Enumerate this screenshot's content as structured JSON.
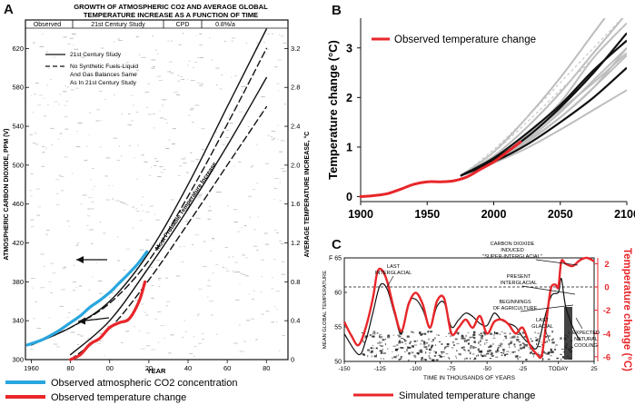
{
  "panels": {
    "a": {
      "label": "A",
      "title_line1": "GROWTH OF ATMOSPHERIC CO2 AND AVERAGE GLOBAL",
      "title_line2": "TEMPERATURE INCREASE AS A FUNCTION OF TIME",
      "periods": [
        "Observed",
        "21st Century Study",
        "CPD",
        "0.8%/a"
      ],
      "legend_lines": [
        "21st Century Study",
        "No Synthetic Fuels-Liquid",
        "And Gas Balances Same",
        "As In 21st Century Study"
      ],
      "annotation": "Most Probable Temperature Increase",
      "bottom_legend": [
        "Observed atmospheric CO2 concentration",
        "Observed temperature change"
      ]
    },
    "b": {
      "label": "B",
      "legend": "Observed temperature change"
    },
    "c": {
      "label": "C",
      "bottom_legend": "Simulated temperature change",
      "annotations": {
        "co2_1": "CARBON DIOXIDE",
        "co2_2": "INDUCED",
        "co2_3": "\"SUPER-INTERGLACIAL\"",
        "last_interglacial_1": "LAST",
        "last_interglacial_2": "INTERGLACIAL",
        "present_1": "PRESENT",
        "present_2": "INTERGLACIAL",
        "agri_1": "BEGINNINGS",
        "agri_2": "OF AGRICULTURE",
        "glacial_1": "LAST",
        "glacial_2": "GLACIAL",
        "cooling_1": "EXPECTED",
        "cooling_2": "NATURAL",
        "cooling_3": "COOLING"
      }
    }
  },
  "colors": {
    "observed_co2": "#2aa6de",
    "observed_temp": "#e8262a",
    "projection_gray": "#bdbdbd",
    "black": "#111111"
  },
  "chart_data": [
    {
      "type": "line",
      "title": "GROWTH OF ATMOSPHERIC CO2 AND AVERAGE GLOBAL TEMPERATURE INCREASE AS A FUNCTION OF TIME",
      "xlabel": "YEAR",
      "ylabel": "ATMOSPHERIC CARBON DIOXIDE, PPM (V)",
      "y2label": "AVERAGE TEMPERATURE INCREASE, °C",
      "x_ticks": [
        "1960",
        "80",
        "00",
        "20",
        "40",
        "60",
        "80"
      ],
      "y_ticks": [
        300,
        340,
        380,
        420,
        460,
        500,
        540,
        580,
        620
      ],
      "y2_ticks": [
        "0",
        "0.4",
        "0.8",
        "1.2",
        "1.6",
        "2.0",
        "2.4",
        "2.8",
        "3.2"
      ],
      "xlim": [
        1957,
        2091
      ],
      "ylim": [
        300,
        640
      ],
      "y2lim": [
        0,
        3.4
      ],
      "series": [
        {
          "name": "Observed atmospheric CO2 concentration",
          "axis": "left",
          "x": [
            1958,
            1965,
            1970,
            1975,
            1980,
            1985,
            1990,
            1995,
            2000,
            2005,
            2010,
            2015,
            2019
          ],
          "y": [
            315,
            320,
            325,
            331,
            338,
            345,
            354,
            361,
            369,
            379,
            389,
            400,
            411
          ]
        },
        {
          "name": "Observed temperature change",
          "axis": "right",
          "x": [
            1980,
            1985,
            1990,
            1995,
            2000,
            2005,
            2010,
            2015,
            2018
          ],
          "y": [
            0.0,
            0.05,
            0.16,
            0.22,
            0.33,
            0.38,
            0.42,
            0.6,
            0.8
          ]
        },
        {
          "name": "21st Century Study",
          "axis": "left",
          "x": [
            1960,
            1980,
            2000,
            2020,
            2040,
            2060,
            2080
          ],
          "y": [
            315,
            333,
            360,
            410,
            480,
            560,
            640
          ]
        },
        {
          "name": "No Synthetic Fuels-Liquid And Gas Balances Same As In 21st Century Study",
          "axis": "left",
          "x": [
            1960,
            1980,
            2000,
            2020,
            2040,
            2060,
            2080
          ],
          "y": [
            315,
            333,
            358,
            402,
            468,
            542,
            620
          ]
        },
        {
          "name": "Most Probable Temperature Increase",
          "axis": "right",
          "x": [
            1980,
            2000,
            2020,
            2040,
            2060,
            2080
          ],
          "y": [
            0.05,
            0.4,
            0.95,
            1.55,
            2.2,
            2.9
          ]
        },
        {
          "name": "Most Probable Temperature Increase (dashed)",
          "axis": "right",
          "x": [
            1980,
            2000,
            2020,
            2040,
            2060,
            2080
          ],
          "y": [
            0.0,
            0.32,
            0.82,
            1.4,
            2.0,
            2.6
          ]
        }
      ]
    },
    {
      "type": "line",
      "ylabel": "Temperature change (°C)",
      "x_ticks": [
        1900,
        1950,
        2000,
        2050,
        2100
      ],
      "y_ticks": [
        0,
        1,
        2,
        3
      ],
      "xlim": [
        1900,
        2100
      ],
      "ylim": [
        -0.1,
        3.6
      ],
      "series": [
        {
          "name": "Observed temperature change",
          "x": [
            1900,
            1910,
            1920,
            1930,
            1940,
            1950,
            1960,
            1970,
            1980,
            1990,
            2000,
            2010,
            2020
          ],
          "y": [
            0.0,
            0.02,
            0.06,
            0.15,
            0.25,
            0.3,
            0.3,
            0.32,
            0.4,
            0.55,
            0.7,
            0.9,
            1.1
          ]
        },
        {
          "x": [
            1975,
            2000,
            2025,
            2050,
            2075,
            2100
          ],
          "y": [
            0.42,
            0.75,
            1.2,
            1.8,
            2.5,
            3.3
          ]
        },
        {
          "x": [
            1975,
            2000,
            2025,
            2050,
            2075,
            2100
          ],
          "y": [
            0.42,
            0.7,
            1.05,
            1.5,
            2.0,
            2.6
          ]
        },
        {
          "x": [
            1975,
            2000,
            2025,
            2050,
            2075,
            2100
          ],
          "y": [
            0.42,
            0.78,
            1.25,
            1.9,
            2.8,
            3.5
          ]
        },
        {
          "x": [
            1975,
            2000,
            2025,
            2050,
            2075,
            2100
          ],
          "y": [
            0.42,
            0.72,
            1.1,
            1.6,
            2.2,
            3.0
          ]
        },
        {
          "x": [
            1975,
            2000,
            2025,
            2050,
            2075,
            2100
          ],
          "y": [
            0.42,
            0.68,
            0.98,
            1.35,
            1.75,
            2.15
          ]
        },
        {
          "x": [
            1975,
            2000,
            2025,
            2050,
            2075,
            2100
          ],
          "y": [
            0.42,
            0.74,
            1.15,
            1.7,
            2.35,
            3.0
          ]
        },
        {
          "x": [
            1975,
            2000,
            2025,
            2050,
            2075,
            2100
          ],
          "y": [
            0.42,
            0.76,
            1.2,
            1.75,
            2.3,
            2.9
          ]
        },
        {
          "x": [
            1975,
            2000,
            2025,
            2050,
            2075,
            2100
          ],
          "y": [
            0.42,
            0.82,
            1.4,
            2.1,
            2.9,
            3.7
          ]
        },
        {
          "x": [
            1975,
            2000,
            2025,
            2050,
            2075,
            2100
          ],
          "y": [
            0.42,
            0.9,
            1.6,
            2.4,
            3.3,
            4.2
          ]
        },
        {
          "x": [
            1975,
            2000,
            2025,
            2050,
            2075,
            2100
          ],
          "y": [
            0.42,
            0.78,
            1.28,
            1.85,
            2.55,
            3.15
          ]
        },
        {
          "x": [
            1975,
            2000,
            2025,
            2050,
            2075,
            2100
          ],
          "y": [
            0.42,
            0.75,
            1.12,
            1.6,
            2.2,
            2.85
          ]
        },
        {
          "x": [
            1975,
            2000,
            2025,
            2050,
            2075,
            2100
          ],
          "y": [
            0.42,
            0.95,
            1.6,
            2.3,
            3.0,
            3.7
          ]
        },
        {
          "x": [
            1975,
            2000,
            2025,
            2050,
            2075,
            2100
          ],
          "y": [
            0.42,
            0.9,
            1.5,
            2.15,
            2.8,
            3.5
          ]
        }
      ]
    },
    {
      "type": "line",
      "xlabel": "TIME IN THOUSANDS OF YEARS",
      "ylabel": "MEAN GLOBAL TEMPERATURE",
      "y2label": "Temperature change (°C)",
      "x_ticks": [
        "-150",
        "-125",
        "-100",
        "-75",
        "-50",
        "-25",
        "TODAY",
        "25"
      ],
      "y_ticks": [
        "50",
        "55",
        "60",
        "F 65"
      ],
      "y2_ticks": [
        "2",
        "0",
        "-2",
        "-4",
        "-6"
      ],
      "xlim": [
        -150,
        25
      ],
      "ylim": [
        50,
        65
      ],
      "y2lim": [
        -6.4,
        2.5
      ],
      "series": [
        {
          "name": "Simulated temperature change",
          "axis": "right",
          "x": [
            -150,
            -145,
            -140,
            -135,
            -130,
            -127,
            -124,
            -120,
            -115,
            -110,
            -105,
            -100,
            -95,
            -90,
            -85,
            -80,
            -75,
            -70,
            -65,
            -60,
            -55,
            -50,
            -45,
            -40,
            -35,
            -30,
            -25,
            -20,
            -15,
            -12,
            -10,
            -7,
            -5,
            -2,
            0,
            2,
            5,
            10,
            15,
            20,
            25
          ],
          "y": [
            -3.0,
            -4.2,
            -5.0,
            -3.5,
            -1.0,
            1.2,
            1.5,
            0.5,
            -2.0,
            -3.8,
            -1.5,
            -0.5,
            -1.5,
            -3.5,
            -1.2,
            -1.0,
            -4.0,
            -3.5,
            -2.8,
            -3.5,
            -2.5,
            -4.0,
            -3.0,
            -2.8,
            -3.2,
            -4.0,
            -3.5,
            -5.0,
            -5.8,
            -6.0,
            -4.5,
            -1.5,
            0.0,
            0.2,
            0.0,
            2.2,
            2.0,
            1.8,
            2.3,
            2.5,
            2.2
          ]
        },
        {
          "name": "",
          "axis": "left",
          "x": [
            -150,
            -140,
            -135,
            -130,
            -125,
            -120,
            -115,
            -110,
            -105,
            -100,
            -95,
            -90,
            -85,
            -80,
            -75,
            -70,
            -65,
            -60,
            -55,
            -50,
            -45,
            -40,
            -35,
            -30,
            -25,
            -20,
            -15,
            -10,
            -5,
            0,
            2,
            5,
            10,
            15
          ],
          "y": [
            54,
            51,
            53,
            57,
            61,
            60.5,
            57,
            54,
            58.5,
            59,
            57.5,
            55,
            58,
            58.5,
            55,
            56,
            57,
            56.5,
            55.5,
            55.2,
            57,
            56,
            55.5,
            55,
            53.5,
            52.5,
            52,
            56,
            59.5,
            60,
            62,
            58,
            55,
            53
          ]
        }
      ]
    }
  ]
}
